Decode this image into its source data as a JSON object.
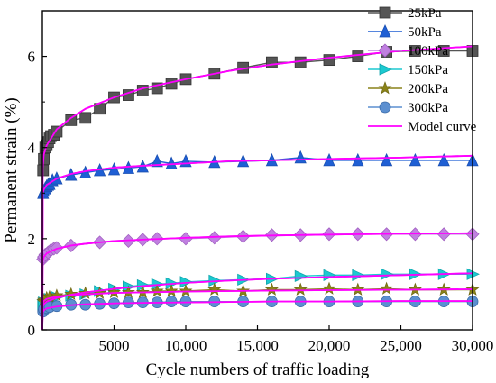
{
  "chart_data": {
    "type": "line",
    "title": "",
    "xlabel": "Cycle numbers of traffic loading",
    "ylabel": "Permanent strain (%)",
    "xlim": [
      0,
      30000
    ],
    "ylim": [
      0,
      7
    ],
    "x_ticks": [
      5000,
      10000,
      15000,
      20000,
      25000,
      30000
    ],
    "x_tick_labels": [
      "5000",
      "10,000",
      "15,000",
      "20,000",
      "25,000",
      "30,000"
    ],
    "y_ticks": [
      0,
      2,
      4,
      6
    ],
    "y_tick_labels": [
      "0",
      "2",
      "4",
      "6"
    ],
    "legend_position": "top-right",
    "series": [
      {
        "name": "25kPa",
        "marker": "square",
        "color": "#555555",
        "x": [
          50,
          100,
          200,
          300,
          400,
          500,
          600,
          800,
          1000,
          2000,
          3000,
          4000,
          5000,
          6000,
          7000,
          8000,
          9000,
          10000,
          12000,
          14000,
          16000,
          18000,
          20000,
          22000,
          24000,
          26000,
          28000,
          30000
        ],
        "y": [
          3.5,
          3.75,
          4.0,
          4.05,
          4.12,
          4.2,
          4.25,
          4.28,
          4.35,
          4.6,
          4.65,
          4.85,
          5.1,
          5.15,
          5.25,
          5.3,
          5.4,
          5.5,
          5.62,
          5.75,
          5.87,
          5.87,
          5.92,
          6.0,
          6.1,
          6.12,
          6.12,
          6.12
        ]
      },
      {
        "name": "50kPa",
        "marker": "triangle-up",
        "color": "#1f5fd4",
        "x": [
          50,
          100,
          200,
          300,
          400,
          500,
          700,
          1000,
          2000,
          3000,
          4000,
          5000,
          6000,
          7000,
          8000,
          9000,
          10000,
          12000,
          14000,
          16000,
          18000,
          20000,
          22000,
          24000,
          26000,
          28000,
          30000
        ],
        "y": [
          3.0,
          3.05,
          3.1,
          3.15,
          3.18,
          3.2,
          3.28,
          3.32,
          3.4,
          3.45,
          3.5,
          3.52,
          3.55,
          3.58,
          3.7,
          3.65,
          3.7,
          3.68,
          3.7,
          3.72,
          3.78,
          3.72,
          3.72,
          3.72,
          3.72,
          3.72,
          3.72
        ]
      },
      {
        "name": "100kPa",
        "marker": "diamond",
        "color": "#c080e0",
        "x": [
          50,
          100,
          200,
          400,
          600,
          800,
          1000,
          2000,
          4000,
          6000,
          7000,
          8000,
          10000,
          12000,
          14000,
          16000,
          18000,
          20000,
          22000,
          24000,
          26000,
          28000,
          30000
        ],
        "y": [
          1.55,
          1.6,
          1.65,
          1.7,
          1.75,
          1.78,
          1.8,
          1.85,
          1.92,
          1.95,
          1.98,
          2.0,
          2.0,
          2.02,
          2.05,
          2.08,
          2.08,
          2.1,
          2.1,
          2.1,
          2.1,
          2.1,
          2.1
        ]
      },
      {
        "name": "150kPa",
        "marker": "triangle-right",
        "color": "#1cc9d0",
        "x": [
          50,
          100,
          300,
          500,
          1000,
          2000,
          3000,
          4000,
          5000,
          6000,
          7000,
          8000,
          9000,
          10000,
          12000,
          14000,
          16000,
          18000,
          20000,
          22000,
          24000,
          26000,
          28000,
          30000
        ],
        "y": [
          0.55,
          0.6,
          0.65,
          0.68,
          0.72,
          0.75,
          0.78,
          0.85,
          0.9,
          0.95,
          0.98,
          1.0,
          1.02,
          1.05,
          1.08,
          1.1,
          1.12,
          1.18,
          1.2,
          1.2,
          1.22,
          1.22,
          1.22,
          1.22
        ]
      },
      {
        "name": "200kPa",
        "marker": "star",
        "color": "#8a8218",
        "x": [
          50,
          100,
          300,
          500,
          1000,
          2000,
          3000,
          4000,
          5000,
          6000,
          7000,
          8000,
          9000,
          10000,
          12000,
          14000,
          16000,
          18000,
          20000,
          22000,
          24000,
          26000,
          28000,
          30000
        ],
        "y": [
          0.62,
          0.65,
          0.7,
          0.72,
          0.75,
          0.78,
          0.8,
          0.8,
          0.82,
          0.82,
          0.82,
          0.85,
          0.85,
          0.85,
          0.88,
          0.85,
          0.88,
          0.88,
          0.9,
          0.88,
          0.9,
          0.88,
          0.88,
          0.88
        ]
      },
      {
        "name": "300kPa",
        "marker": "circle",
        "color": "#5b8fd0",
        "x": [
          50,
          100,
          300,
          500,
          1000,
          2000,
          3000,
          4000,
          5000,
          6000,
          7000,
          8000,
          9000,
          10000,
          12000,
          14000,
          16000,
          18000,
          20000,
          22000,
          24000,
          26000,
          28000,
          30000
        ],
        "y": [
          0.4,
          0.45,
          0.48,
          0.5,
          0.52,
          0.55,
          0.55,
          0.57,
          0.58,
          0.6,
          0.6,
          0.6,
          0.62,
          0.62,
          0.62,
          0.62,
          0.62,
          0.62,
          0.62,
          0.62,
          0.62,
          0.62,
          0.62,
          0.62
        ]
      }
    ],
    "model_curves": {
      "name": "Model curve",
      "color": "#ff00ff",
      "curves": [
        {
          "x": [
            0,
            20,
            100,
            300,
            1000,
            2000,
            3000,
            5000,
            7000,
            10000,
            13000,
            16000,
            20000,
            25000,
            30000
          ],
          "y": [
            0,
            3.55,
            3.85,
            4.05,
            4.4,
            4.65,
            4.85,
            5.1,
            5.3,
            5.5,
            5.68,
            5.82,
            5.97,
            6.12,
            6.22
          ]
        },
        {
          "x": [
            0,
            20,
            100,
            300,
            1000,
            2000,
            3000,
            5000,
            7000,
            10000,
            13000,
            16000,
            20000,
            25000,
            30000
          ],
          "y": [
            0,
            3.0,
            3.08,
            3.18,
            3.32,
            3.42,
            3.48,
            3.56,
            3.6,
            3.65,
            3.7,
            3.72,
            3.75,
            3.78,
            3.82
          ]
        },
        {
          "x": [
            0,
            20,
            100,
            300,
            1000,
            2000,
            3000,
            5000,
            7000,
            10000,
            13000,
            16000,
            20000,
            25000,
            30000
          ],
          "y": [
            0,
            1.5,
            1.6,
            1.68,
            1.78,
            1.85,
            1.89,
            1.95,
            1.98,
            2.02,
            2.05,
            2.07,
            2.09,
            2.11,
            2.12
          ]
        },
        {
          "x": [
            0,
            20,
            100,
            300,
            1000,
            2000,
            3000,
            5000,
            7000,
            10000,
            13000,
            16000,
            20000,
            25000,
            30000
          ],
          "y": [
            0,
            0.5,
            0.56,
            0.62,
            0.7,
            0.77,
            0.82,
            0.9,
            0.96,
            1.03,
            1.08,
            1.12,
            1.16,
            1.2,
            1.24
          ]
        },
        {
          "x": [
            0,
            20,
            100,
            300,
            1000,
            2000,
            3000,
            5000,
            7000,
            10000,
            13000,
            16000,
            20000,
            25000,
            30000
          ],
          "y": [
            0,
            0.58,
            0.63,
            0.68,
            0.73,
            0.76,
            0.78,
            0.81,
            0.82,
            0.84,
            0.85,
            0.86,
            0.87,
            0.88,
            0.89
          ]
        },
        {
          "x": [
            0,
            20,
            100,
            300,
            1000,
            2000,
            3000,
            5000,
            7000,
            10000,
            13000,
            16000,
            20000,
            25000,
            30000
          ],
          "y": [
            0,
            0.38,
            0.43,
            0.47,
            0.51,
            0.54,
            0.56,
            0.58,
            0.59,
            0.6,
            0.61,
            0.62,
            0.62,
            0.63,
            0.63
          ]
        }
      ]
    }
  }
}
